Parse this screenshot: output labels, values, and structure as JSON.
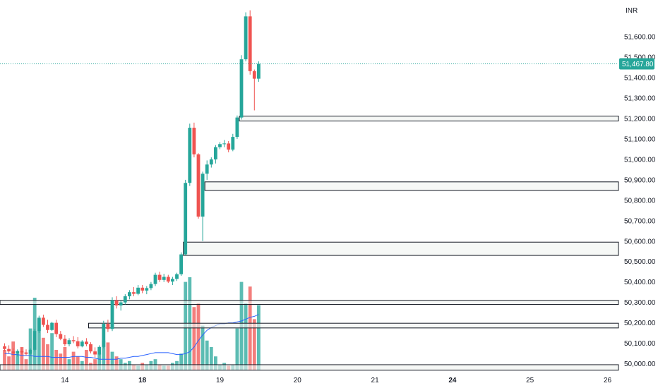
{
  "currency_label": "INR",
  "chart_data": {
    "type": "candlestick",
    "y_axis": {
      "range": [
        49950,
        51770
      ],
      "tick_labels": [
        "51,600.00",
        "51,500.00",
        "51,400.00",
        "51,300.00",
        "51,200.00",
        "51,100.00",
        "51,000.00",
        "50,900.00",
        "50,800.00",
        "50,700.00",
        "50,600.00",
        "50,500.00",
        "50,400.00",
        "50,300.00",
        "50,200.00",
        "50,100.00",
        "50,000.00"
      ],
      "tick_values": [
        51600,
        51500,
        51400,
        51300,
        51200,
        51100,
        51000,
        50900,
        50800,
        50700,
        50600,
        50500,
        50400,
        50300,
        50200,
        50100,
        50000
      ]
    },
    "x_axis": {
      "tick_labels": [
        "14",
        "18",
        "19",
        "20",
        "21",
        "24",
        "25",
        "26"
      ],
      "bold": [
        false,
        true,
        false,
        false,
        false,
        true,
        false,
        false
      ],
      "tick_positions_index": [
        14,
        32,
        50,
        68,
        86,
        104,
        122,
        140
      ]
    },
    "last_price": {
      "value": 51467.8,
      "label": "51,467.80"
    },
    "colors": {
      "up": "#26a69a",
      "down": "#ef5350",
      "ma": "#2962ff",
      "zone_fill": "#f0f3f0",
      "zone_stroke": "#131722",
      "price_line": "#26a69a",
      "price_tag": "#26a69a"
    },
    "zones": [
      {
        "start_index": 55,
        "low": 51188,
        "high": 51212
      },
      {
        "start_index": 47,
        "low": 50848,
        "high": 50890
      },
      {
        "start_index": 42,
        "low": 50530,
        "high": 50595
      },
      {
        "start_index": 0,
        "low": 50290,
        "high": 50310
      },
      {
        "start_index": 20,
        "low": 50175,
        "high": 50198
      },
      {
        "start_index": 0,
        "low": 49968,
        "high": 49995
      }
    ],
    "ma_series": [
      0.18,
      0.18,
      0.17,
      0.17,
      0.16,
      0.16,
      0.16,
      0.15,
      0.15,
      0.15,
      0.15,
      0.14,
      0.14,
      0.14,
      0.14,
      0.14,
      0.15,
      0.15,
      0.15,
      0.14,
      0.14,
      0.13,
      0.12,
      0.12,
      0.12,
      0.12,
      0.12,
      0.13,
      0.13,
      0.14,
      0.15,
      0.15,
      0.16,
      0.17,
      0.18,
      0.19,
      0.19,
      0.19,
      0.19,
      0.18,
      0.17,
      0.17,
      0.18,
      0.2,
      0.25,
      0.32,
      0.38,
      0.43,
      0.46,
      0.48,
      0.5,
      0.5,
      0.51,
      0.51,
      0.52,
      0.53,
      0.55,
      0.57,
      0.58,
      0.6
    ],
    "candles": [
      [
        50085,
        50100,
        50060,
        50072
      ],
      [
        50072,
        50090,
        50050,
        50060
      ],
      [
        50060,
        50075,
        50040,
        50050
      ],
      [
        50050,
        50070,
        50035,
        50062
      ],
      [
        50062,
        50080,
        50045,
        50055
      ],
      [
        50055,
        50070,
        50040,
        50048
      ],
      [
        50048,
        50075,
        50040,
        50068
      ],
      [
        50068,
        50170,
        50060,
        50160
      ],
      [
        50160,
        50235,
        50150,
        50225
      ],
      [
        50225,
        50240,
        50180,
        50190
      ],
      [
        50190,
        50215,
        50150,
        50165
      ],
      [
        50165,
        50205,
        50160,
        50200
      ],
      [
        50200,
        50215,
        50130,
        50145
      ],
      [
        50145,
        50160,
        50115,
        50122
      ],
      [
        50122,
        50140,
        50085,
        50095
      ],
      [
        50095,
        50125,
        50085,
        50115
      ],
      [
        50115,
        50135,
        50100,
        50110
      ],
      [
        50110,
        50130,
        50075,
        50085
      ],
      [
        50085,
        50115,
        50080,
        50108
      ],
      [
        50108,
        50125,
        50085,
        50095
      ],
      [
        50095,
        50105,
        50050,
        50060
      ],
      [
        50060,
        50080,
        50030,
        50045
      ],
      [
        50045,
        50090,
        50040,
        50082
      ],
      [
        50082,
        50210,
        50075,
        50195
      ],
      [
        50195,
        50215,
        50155,
        50170
      ],
      [
        50170,
        50325,
        50160,
        50310
      ],
      [
        50310,
        50330,
        50270,
        50285
      ],
      [
        50285,
        50310,
        50260,
        50300
      ],
      [
        50300,
        50340,
        50290,
        50330
      ],
      [
        50330,
        50360,
        50315,
        50350
      ],
      [
        50350,
        50375,
        50330,
        50342
      ],
      [
        50342,
        50385,
        50335,
        50372
      ],
      [
        50372,
        50385,
        50345,
        50358
      ],
      [
        50358,
        50380,
        50340,
        50370
      ],
      [
        50370,
        50400,
        50360,
        50390
      ],
      [
        50390,
        50445,
        50380,
        50435
      ],
      [
        50435,
        50450,
        50400,
        50410
      ],
      [
        50410,
        50440,
        50400,
        50425
      ],
      [
        50425,
        50435,
        50395,
        50402
      ],
      [
        50402,
        50425,
        50385,
        50415
      ],
      [
        50415,
        50445,
        50405,
        50438
      ],
      [
        50438,
        50545,
        50430,
        50535
      ],
      [
        50535,
        50900,
        50530,
        50885
      ],
      [
        50885,
        51175,
        50870,
        51155
      ],
      [
        51155,
        51180,
        51010,
        51025
      ],
      [
        51025,
        51030,
        50710,
        50720
      ],
      [
        50720,
        50940,
        50600,
        50930
      ],
      [
        50930,
        50995,
        50900,
        50975
      ],
      [
        50975,
        51010,
        50960,
        51000
      ],
      [
        51000,
        51070,
        50980,
        51060
      ],
      [
        51060,
        51085,
        51050,
        51075
      ],
      [
        51075,
        51095,
        51060,
        51078
      ],
      [
        51078,
        51090,
        51035,
        51048
      ],
      [
        51048,
        51125,
        51040,
        51110
      ],
      [
        51110,
        51215,
        51100,
        51205
      ],
      [
        51205,
        51510,
        51195,
        51490
      ],
      [
        51490,
        51720,
        51480,
        51700
      ],
      [
        51700,
        51730,
        51415,
        51432
      ],
      [
        51432,
        51440,
        51240,
        51395
      ],
      [
        51395,
        51480,
        51380,
        51468
      ]
    ],
    "volumes": [
      0.22,
      0.15,
      0.31,
      0.18,
      0.25,
      0.12,
      0.45,
      0.78,
      0.55,
      0.35,
      0.28,
      0.4,
      0.22,
      0.18,
      0.25,
      0.12,
      0.2,
      0.15,
      0.1,
      0.22,
      0.08,
      0.12,
      0.18,
      0.32,
      0.3,
      0.2,
      0.15,
      0.12,
      0.08,
      0.1,
      0.06,
      0.05,
      0.08,
      0.06,
      0.1,
      0.12,
      0.06,
      0.05,
      0.05,
      0.08,
      0.1,
      0.18,
      0.95,
      1.0,
      0.68,
      0.72,
      0.48,
      0.32,
      0.25,
      0.15,
      0.06,
      0.08,
      0.05,
      0.06,
      0.45,
      0.95,
      0.72,
      0.9,
      0.55,
      0.7
    ]
  }
}
